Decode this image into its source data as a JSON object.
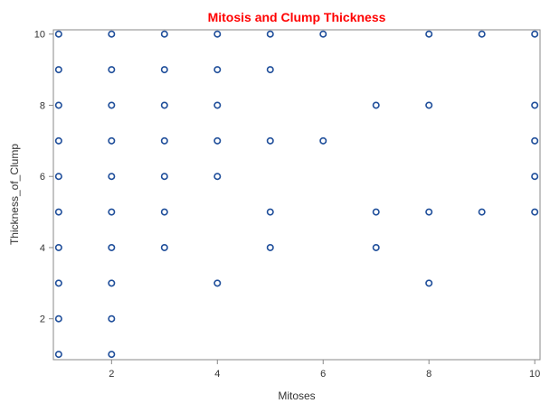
{
  "chart_data": {
    "type": "scatter",
    "title": "Mitosis and Clump Thickness",
    "xlabel": "Mitoses",
    "ylabel": "Thickness_of_Clump",
    "xlim": [
      0.9,
      10.1
    ],
    "ylim": [
      0.85,
      10.12
    ],
    "x_ticks": [
      2,
      4,
      6,
      8,
      10
    ],
    "y_ticks": [
      2,
      4,
      6,
      8,
      10
    ],
    "grid": false,
    "colors": {
      "title": "#ff0000",
      "marker": "#1f4e9a",
      "axis": "#888888"
    },
    "points": [
      {
        "x": 1,
        "y": 10
      },
      {
        "x": 1,
        "y": 9
      },
      {
        "x": 1,
        "y": 8
      },
      {
        "x": 1,
        "y": 7
      },
      {
        "x": 1,
        "y": 6
      },
      {
        "x": 1,
        "y": 5
      },
      {
        "x": 1,
        "y": 4
      },
      {
        "x": 1,
        "y": 3
      },
      {
        "x": 1,
        "y": 2
      },
      {
        "x": 1,
        "y": 1
      },
      {
        "x": 2,
        "y": 10
      },
      {
        "x": 2,
        "y": 9
      },
      {
        "x": 2,
        "y": 8
      },
      {
        "x": 2,
        "y": 7
      },
      {
        "x": 2,
        "y": 6
      },
      {
        "x": 2,
        "y": 5
      },
      {
        "x": 2,
        "y": 4
      },
      {
        "x": 2,
        "y": 3
      },
      {
        "x": 2,
        "y": 2
      },
      {
        "x": 2,
        "y": 1
      },
      {
        "x": 3,
        "y": 10
      },
      {
        "x": 3,
        "y": 9
      },
      {
        "x": 3,
        "y": 8
      },
      {
        "x": 3,
        "y": 7
      },
      {
        "x": 3,
        "y": 6
      },
      {
        "x": 3,
        "y": 5
      },
      {
        "x": 3,
        "y": 4
      },
      {
        "x": 4,
        "y": 10
      },
      {
        "x": 4,
        "y": 9
      },
      {
        "x": 4,
        "y": 8
      },
      {
        "x": 4,
        "y": 7
      },
      {
        "x": 4,
        "y": 6
      },
      {
        "x": 4,
        "y": 3
      },
      {
        "x": 5,
        "y": 10
      },
      {
        "x": 5,
        "y": 9
      },
      {
        "x": 5,
        "y": 7
      },
      {
        "x": 5,
        "y": 5
      },
      {
        "x": 5,
        "y": 4
      },
      {
        "x": 6,
        "y": 10
      },
      {
        "x": 6,
        "y": 7
      },
      {
        "x": 7,
        "y": 8
      },
      {
        "x": 7,
        "y": 5
      },
      {
        "x": 7,
        "y": 4
      },
      {
        "x": 8,
        "y": 10
      },
      {
        "x": 8,
        "y": 8
      },
      {
        "x": 8,
        "y": 5
      },
      {
        "x": 8,
        "y": 3
      },
      {
        "x": 9,
        "y": 10
      },
      {
        "x": 9,
        "y": 5
      },
      {
        "x": 10,
        "y": 10
      },
      {
        "x": 10,
        "y": 8
      },
      {
        "x": 10,
        "y": 7
      },
      {
        "x": 10,
        "y": 6
      },
      {
        "x": 10,
        "y": 5
      }
    ]
  }
}
